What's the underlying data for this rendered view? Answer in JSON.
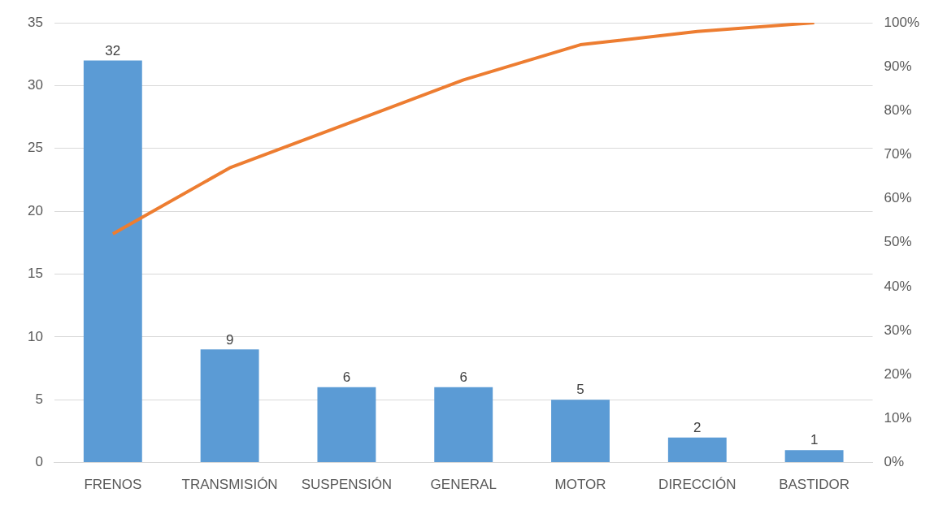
{
  "chart_data": {
    "type": "bar",
    "categories": [
      "FRENOS",
      "TRANSMISIÓN",
      "SUSPENSIÓN",
      "GENERAL",
      "MOTOR",
      "DIRECCIÓN",
      "BASTIDOR"
    ],
    "series": [
      {
        "color": "#5b9bd5",
        "values": [
          32,
          9,
          6,
          6,
          5,
          2,
          1
        ],
        "value_labels": [
          "32",
          "9",
          "6",
          "6",
          "5",
          "2",
          "1"
        ]
      },
      {
        "type": "line",
        "axis": "y2",
        "color": "#ed7d31",
        "values": [
          52,
          67,
          77,
          87,
          95,
          98,
          100
        ]
      }
    ],
    "ylim": [
      0,
      35
    ],
    "yticks": [
      0,
      5,
      10,
      15,
      20,
      25,
      30,
      35
    ],
    "y2lim": [
      0,
      100
    ],
    "y2ticks": [
      {
        "value": 0,
        "label": "0%"
      },
      {
        "value": 10,
        "label": "10%"
      },
      {
        "value": 20,
        "label": "20%"
      },
      {
        "value": 30,
        "label": "30%"
      },
      {
        "value": 40,
        "label": "40%"
      },
      {
        "value": 50,
        "label": "50%"
      },
      {
        "value": 60,
        "label": "60%"
      },
      {
        "value": 70,
        "label": "70%"
      },
      {
        "value": 80,
        "label": "80%"
      },
      {
        "value": 90,
        "label": "90%"
      },
      {
        "value": 100,
        "label": "100%"
      }
    ],
    "grid": "y",
    "legend": false,
    "marker": "none",
    "line_style": "solid"
  }
}
